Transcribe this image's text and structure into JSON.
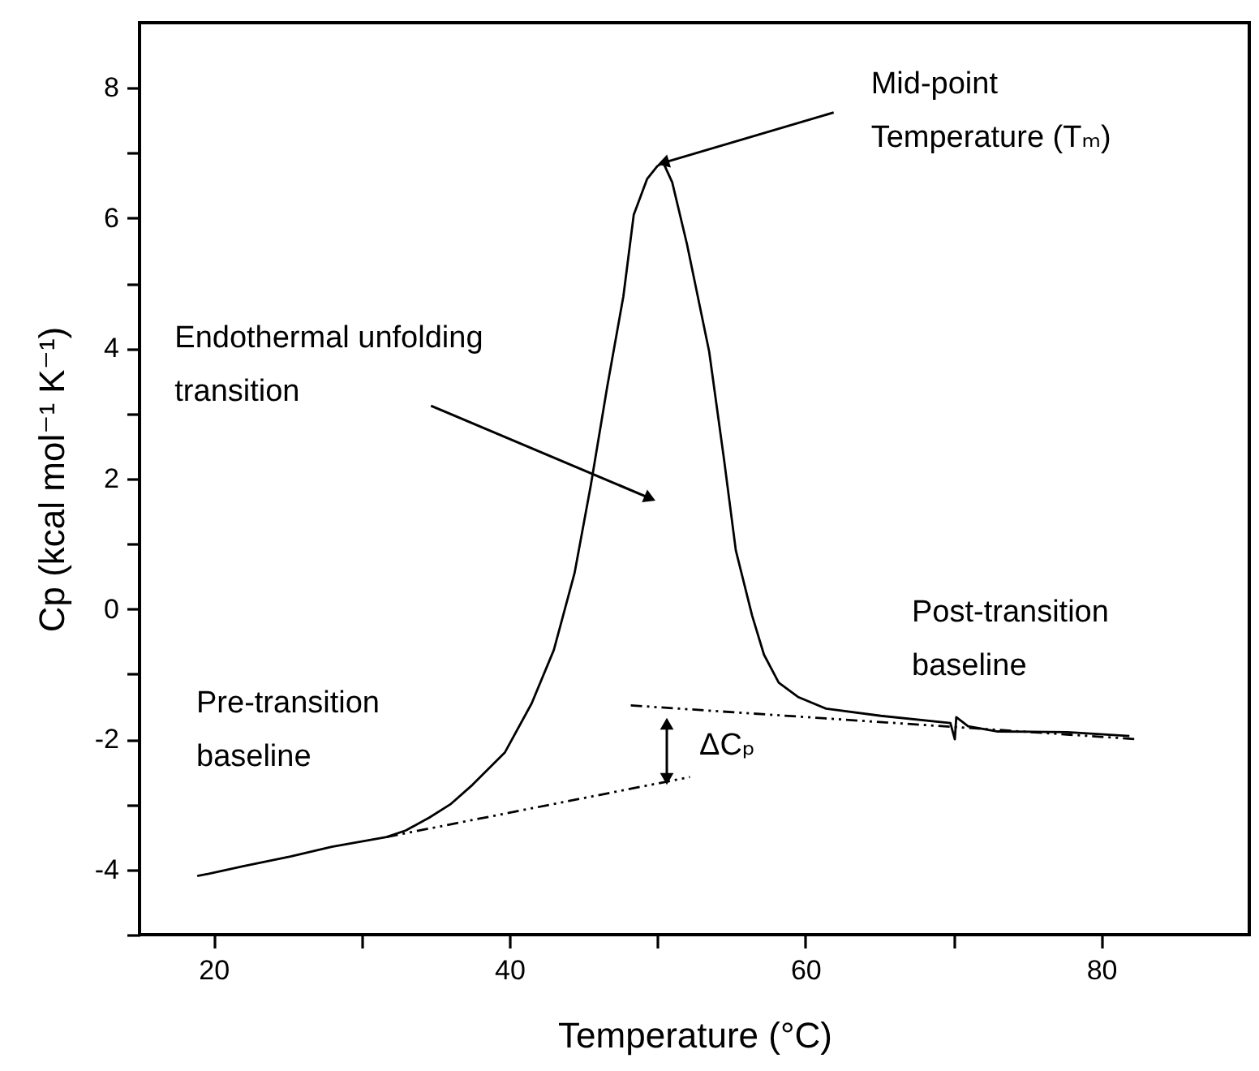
{
  "chart_data": {
    "type": "line",
    "xlabel": "Temperature (°C)",
    "ylabel": "Cp (kcal mol⁻¹ K⁻¹)",
    "xlim": [
      15,
      90
    ],
    "ylim": [
      -5,
      9
    ],
    "xticks": [
      20,
      {
        "value": 30,
        "label": null
      },
      40,
      {
        "value": 50,
        "label": null
      },
      60,
      {
        "value": 70,
        "label": null
      },
      80
    ],
    "yticks": [
      {
        "value": -5,
        "label": null
      },
      -4,
      {
        "value": -3,
        "label": null
      },
      -2,
      {
        "value": -1,
        "label": null
      },
      0,
      {
        "value": 1,
        "label": null
      },
      2,
      {
        "value": 3,
        "label": null
      },
      4,
      {
        "value": 5,
        "label": null
      },
      6,
      {
        "value": 7,
        "label": null
      },
      8
    ],
    "grid": false,
    "marker": "none",
    "series": [
      {
        "color": "#000000",
        "line_style": "solid",
        "x": [
          18.9,
          20,
          22,
          25.2,
          28,
          31.7,
          33,
          34.6,
          36,
          37.5,
          39.7,
          41.5,
          43.0,
          44.4,
          45.5,
          46.6,
          47.7,
          48.4,
          49.3,
          50.0,
          50.4,
          51.0,
          52.0,
          53.5,
          54.5,
          55.3,
          56.4,
          57.2,
          58.2,
          59.5,
          61.4,
          65.1,
          69.8,
          70.1,
          70.2,
          71,
          73.0,
          77.7,
          81.9
        ],
        "values": [
          -4.1,
          -4.05,
          -3.95,
          -3.8,
          -3.65,
          -3.5,
          -3.4,
          -3.2,
          -3.0,
          -2.7,
          -2.2,
          -1.45,
          -0.63,
          0.55,
          1.9,
          3.4,
          4.8,
          6.05,
          6.6,
          6.8,
          6.85,
          6.55,
          5.6,
          3.95,
          2.3,
          0.9,
          -0.1,
          -0.7,
          -1.13,
          -1.35,
          -1.53,
          -1.64,
          -1.75,
          -2.0,
          -1.66,
          -1.8,
          -1.88,
          -1.89,
          -1.95
        ]
      },
      {
        "color": "#000000",
        "line_style": "dashed",
        "x": [
          31.7,
          52.2
        ],
        "values": [
          -3.5,
          -2.58
        ]
      },
      {
        "color": "#000000",
        "line_style": "dashed",
        "x": [
          48.2,
          82.5
        ],
        "values": [
          -1.48,
          -2.0
        ]
      }
    ],
    "annotations": [
      {
        "text": "Mid-point\nTemperature (Tₘ)",
        "x": 50.4,
        "y": 6.85
      },
      {
        "text": "Endothermal unfolding\ntransition",
        "x": 49.5,
        "y": 1.7
      },
      "Pre-transition\nbaseline",
      "Post-transition\nbaseline",
      "ΔCₚ"
    ]
  }
}
